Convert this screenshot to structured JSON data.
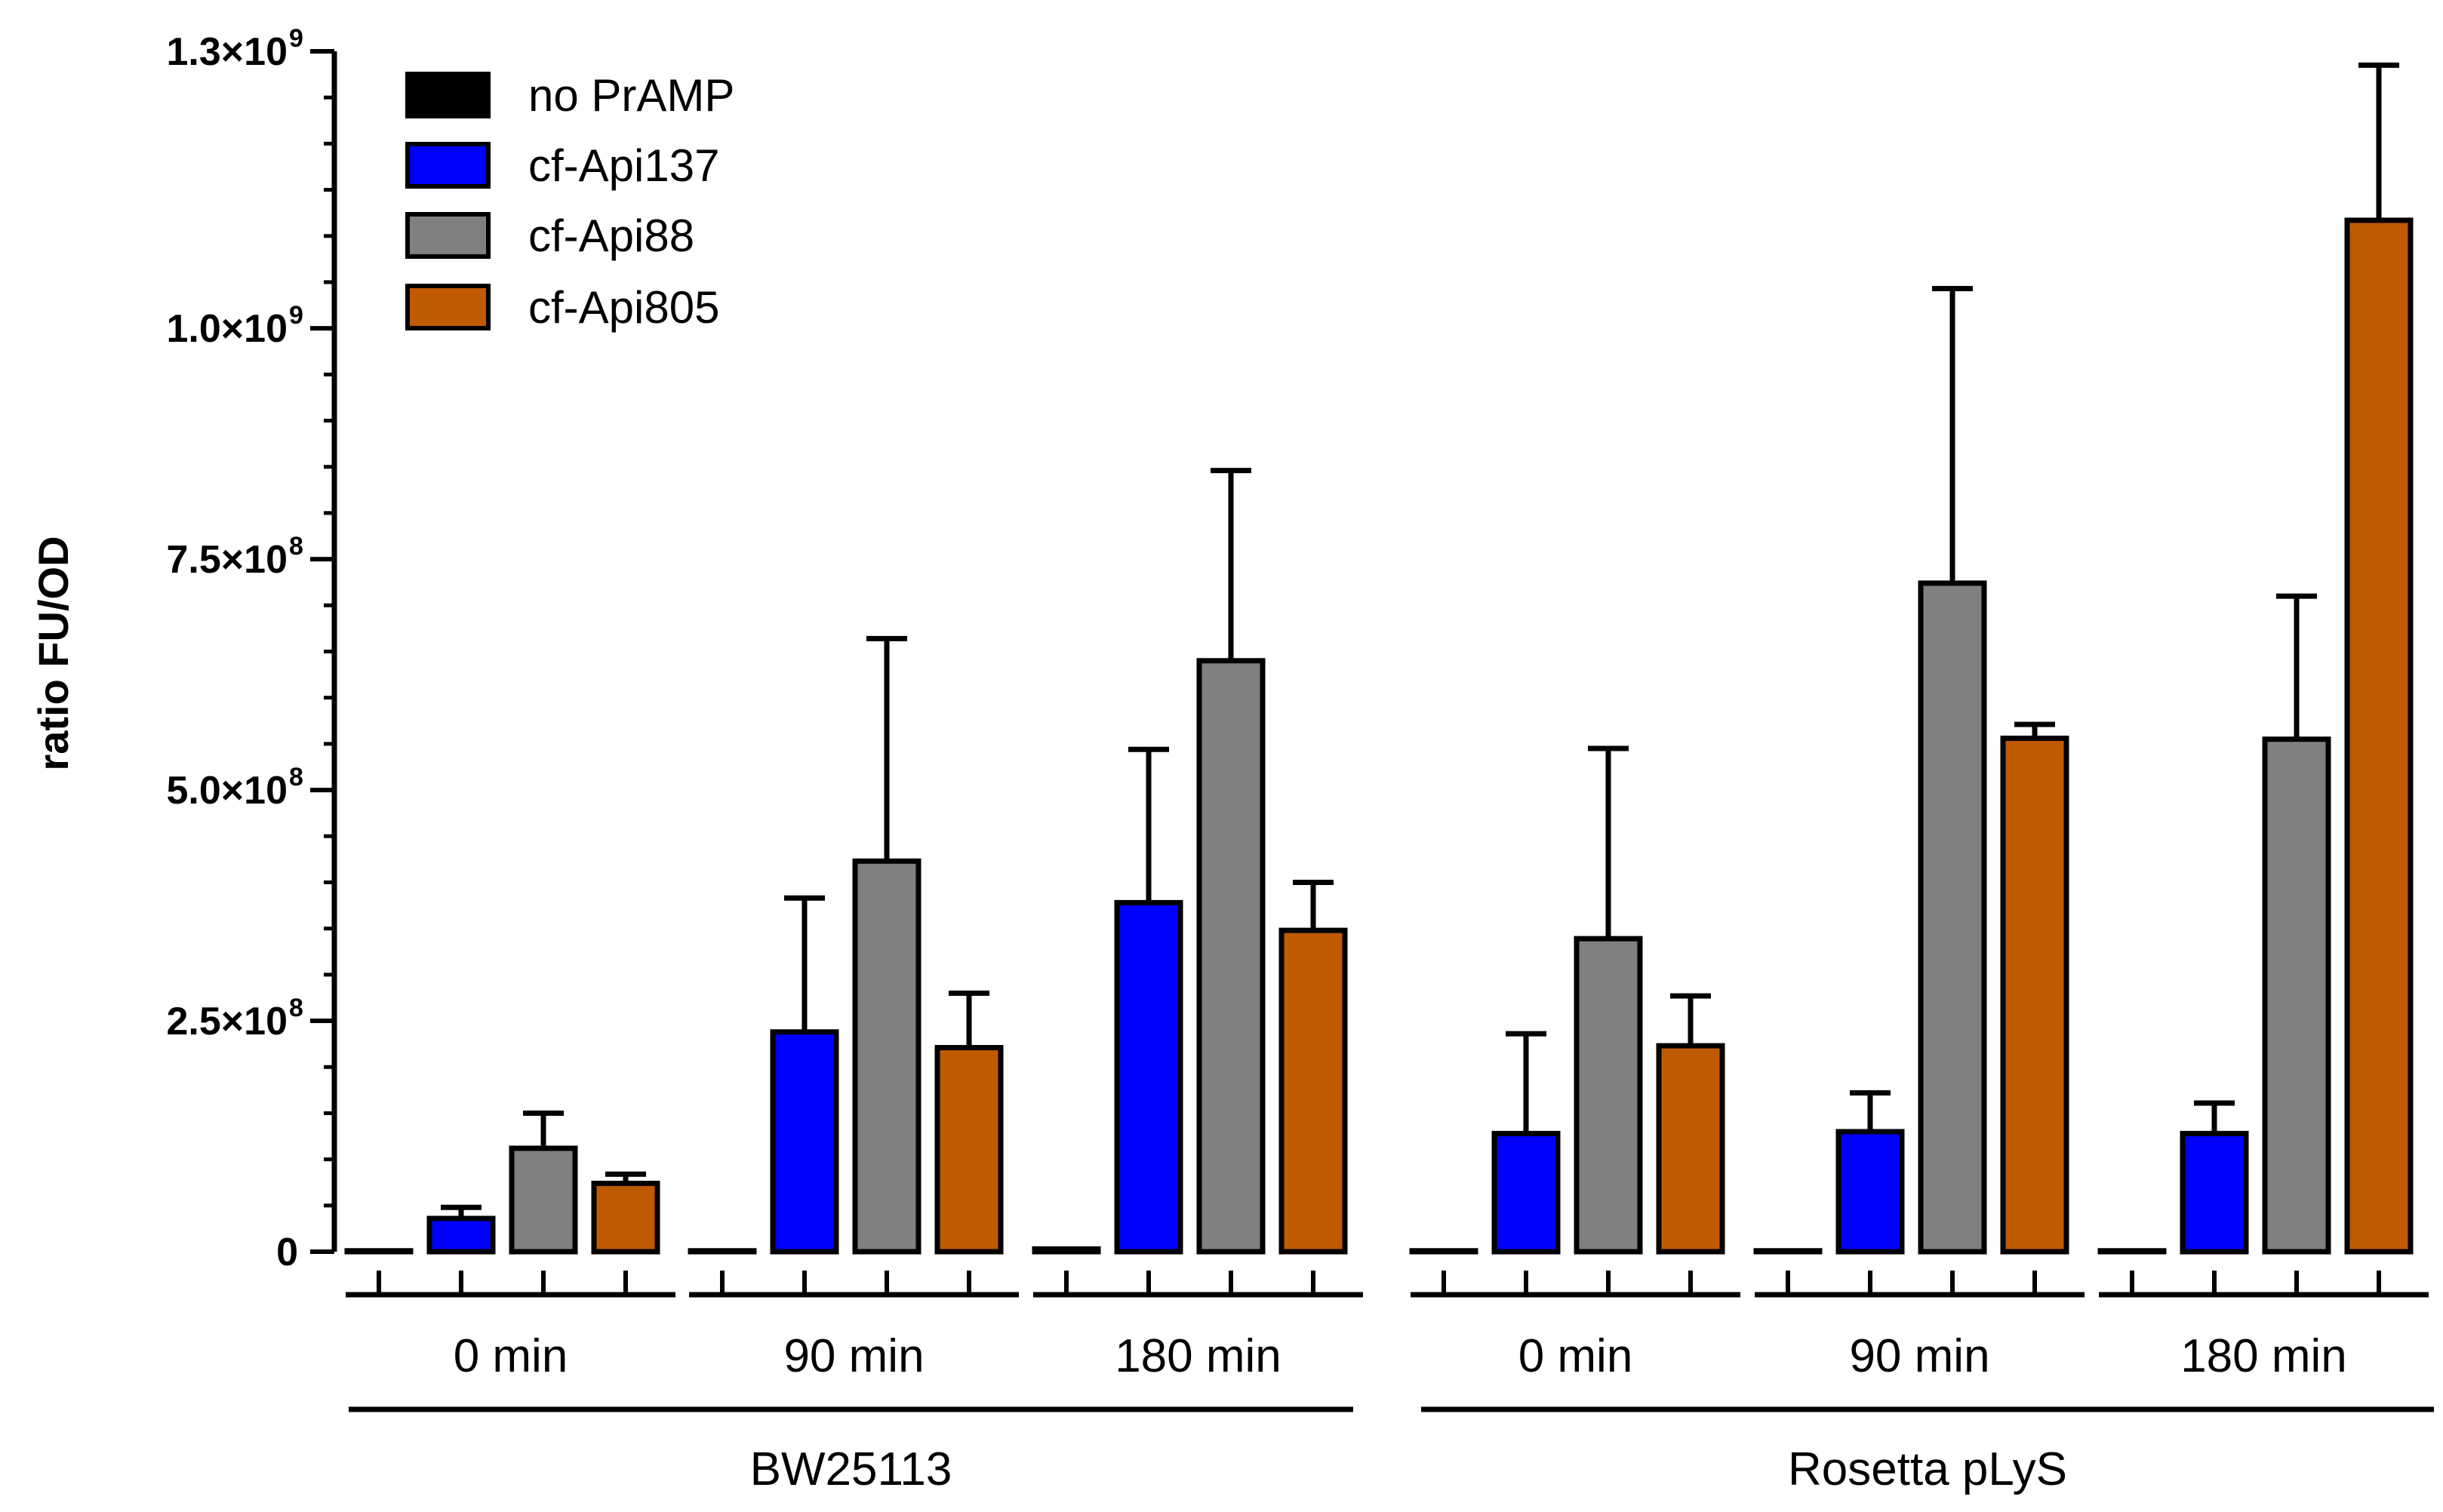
{
  "chart_data": {
    "type": "bar",
    "title": "",
    "ylabel": "ratio FU/OD",
    "xlabel": "",
    "ylim": [
      0,
      1300000000
    ],
    "ytick_labels": [
      {
        "value": 0,
        "mantissa": "0",
        "exp": ""
      },
      {
        "value": 250000000,
        "mantissa": "2.5×10",
        "exp": "8"
      },
      {
        "value": 500000000,
        "mantissa": "5.0×10",
        "exp": "8"
      },
      {
        "value": 750000000,
        "mantissa": "7.5×10",
        "exp": "8"
      },
      {
        "value": 1000000000,
        "mantissa": "1.0×10",
        "exp": "9"
      },
      {
        "value": 1300000000,
        "mantissa": "1.3×10",
        "exp": "9"
      }
    ],
    "minor_tick_step": 50000000,
    "groups": [
      {
        "name": "BW25113",
        "categories": [
          "0 min",
          "90 min",
          "180 min"
        ]
      },
      {
        "name": "Rosetta pLyS",
        "categories": [
          "0 min",
          "90 min",
          "180 min"
        ]
      }
    ],
    "categories": [
      "0 min",
      "90 min",
      "180 min",
      "0 min",
      "90 min",
      "180 min"
    ],
    "series": [
      {
        "name": "no PrAMP",
        "color": "#000000",
        "values": [
          1000000,
          1000000,
          3000000,
          1000000,
          1000000,
          1000000
        ],
        "errors": [
          0,
          0,
          0,
          0,
          0,
          0
        ]
      },
      {
        "name": "cf-Api137",
        "color": "#0000ff",
        "values": [
          36000000,
          238000000,
          378000000,
          128000000,
          130000000,
          128000000
        ],
        "errors": [
          12000000,
          145000000,
          166000000,
          108000000,
          42000000,
          33000000
        ]
      },
      {
        "name": "cf-Api88",
        "color": "#808080",
        "values": [
          112000000,
          423000000,
          640000000,
          339000000,
          724000000,
          555000000
        ],
        "errors": [
          38000000,
          241000000,
          206000000,
          206000000,
          319000000,
          155000000
        ]
      },
      {
        "name": "cf-Api805",
        "color": "#c05a00",
        "values": [
          74000000,
          221000000,
          348000000,
          223000000,
          556000000,
          1117000000
        ],
        "errors": [
          10000000,
          59000000,
          52000000,
          54000000,
          15000000,
          168000000
        ]
      }
    ],
    "legend": {
      "position": "top-left"
    }
  }
}
